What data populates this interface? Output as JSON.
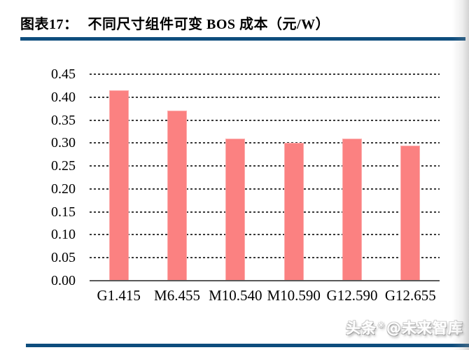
{
  "header": {
    "figure_label": "图表17：",
    "title": "不同尺寸组件可变 BOS 成本（元/W）"
  },
  "chart_data": {
    "type": "bar",
    "title": "不同尺寸组件可变 BOS 成本（元/W）",
    "categories": [
      "G1.415",
      "M6.455",
      "M10.540",
      "M10.590",
      "G12.590",
      "G12.655"
    ],
    "values": [
      0.415,
      0.37,
      0.31,
      0.3,
      0.31,
      0.295
    ],
    "xlabel": "",
    "ylabel": "",
    "ylim": [
      0,
      0.45
    ],
    "ytick_step": 0.05,
    "ytick_labels": [
      "0.00",
      "0.05",
      "0.10",
      "0.15",
      "0.20",
      "0.25",
      "0.30",
      "0.35",
      "0.40",
      "0.45"
    ],
    "grid": "horizontal-dashed",
    "legend": "none",
    "bar_color": "#FB8181"
  },
  "watermark": {
    "prefix": "头条",
    "logo_glyph": "✳",
    "suffix": "@未来智库"
  },
  "colors": {
    "accent_blue": "#0E4D7D",
    "bar_pink": "#FB8181",
    "axis_gray": "#595959",
    "grid_dark": "#3a3a3a"
  }
}
